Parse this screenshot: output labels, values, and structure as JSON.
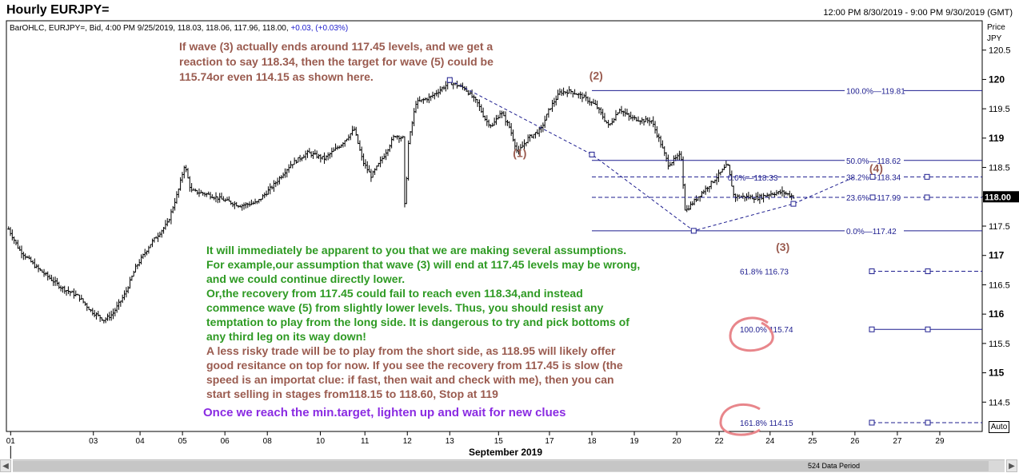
{
  "header": {
    "title": "Hourly EURJPY=",
    "date_range": "12:00 PM 8/30/2019 - 9:00 PM 9/30/2019 (GMT)",
    "bar_info": {
      "text": "BarOHLC, EURJPY=, Bid, 4:00 PM 9/25/2019, 118.03, 118.06, 117.96, 118.00, ",
      "change": "+0.03, (+0.03%)"
    }
  },
  "colors": {
    "brown": "#9a5b4f",
    "green": "#2e9a23",
    "purple": "#8a2be2",
    "navy": "#1d1d8f",
    "bars": "#000000",
    "circle": "#e8868b"
  },
  "axis": {
    "title_line1": "Price",
    "title_line2": "JPY",
    "current_price": "118.00",
    "month_label": "September 2019",
    "auto_label": "Auto",
    "data_period": "524 Data Period"
  },
  "chart_data": {
    "type": "ohlc",
    "title": "Hourly EURJPY=",
    "y_unit": "JPY",
    "ylim": [
      114.0,
      121.0
    ],
    "y_ticks": [
      114.5,
      115,
      115.5,
      116,
      116.5,
      117,
      117.5,
      118,
      118.5,
      119,
      119.5,
      120,
      120.5
    ],
    "x_ticks": [
      "01",
      "03",
      "04",
      "05",
      "06",
      "08",
      "10",
      "11",
      "12",
      "13",
      "15",
      "17",
      "18",
      "19",
      "20",
      "22",
      "24",
      "25",
      "26",
      "27",
      "29"
    ],
    "x_ticks_day": [
      1,
      2.95,
      4.05,
      5.05,
      6.05,
      7.05,
      8.3,
      9.35,
      10.35,
      11.35,
      12.5,
      13.7,
      14.7,
      15.7,
      16.7,
      17.7,
      18.9,
      19.9,
      20.9,
      21.9,
      22.9
    ],
    "x_range_day": [
      0.9,
      23.9
    ],
    "price_path": [
      [
        0.95,
        117.45
      ],
      [
        1.2,
        117.1
      ],
      [
        1.6,
        116.8
      ],
      [
        2.2,
        116.45
      ],
      [
        2.6,
        116.3
      ],
      [
        2.9,
        116.05
      ],
      [
        3.2,
        115.9
      ],
      [
        3.4,
        116.0
      ],
      [
        3.7,
        116.35
      ],
      [
        3.95,
        116.8
      ],
      [
        4.3,
        117.2
      ],
      [
        4.7,
        117.55
      ],
      [
        4.95,
        118.1
      ],
      [
        5.1,
        118.55
      ],
      [
        5.25,
        118.1
      ],
      [
        5.6,
        118.05
      ],
      [
        6.0,
        117.95
      ],
      [
        6.4,
        117.85
      ],
      [
        6.8,
        117.9
      ],
      [
        7.2,
        118.2
      ],
      [
        7.6,
        118.55
      ],
      [
        8.0,
        118.75
      ],
      [
        8.4,
        118.65
      ],
      [
        8.8,
        118.9
      ],
      [
        9.1,
        119.15
      ],
      [
        9.3,
        118.6
      ],
      [
        9.5,
        118.35
      ],
      [
        9.8,
        118.7
      ],
      [
        10.05,
        119.05
      ],
      [
        10.25,
        119.0
      ],
      [
        10.3,
        117.5
      ],
      [
        10.35,
        118.8
      ],
      [
        10.55,
        119.6
      ],
      [
        10.9,
        119.7
      ],
      [
        11.35,
        119.95
      ],
      [
        11.7,
        119.85
      ],
      [
        12.0,
        119.6
      ],
      [
        12.2,
        119.3
      ],
      [
        12.35,
        119.2
      ],
      [
        12.55,
        119.45
      ],
      [
        12.75,
        119.2
      ],
      [
        12.95,
        118.75
      ],
      [
        13.2,
        119.0
      ],
      [
        13.5,
        119.15
      ],
      [
        13.7,
        119.5
      ],
      [
        13.95,
        119.78
      ],
      [
        14.2,
        119.8
      ],
      [
        14.5,
        119.7
      ],
      [
        14.8,
        119.55
      ],
      [
        15.1,
        119.2
      ],
      [
        15.35,
        119.5
      ],
      [
        15.6,
        119.35
      ],
      [
        15.9,
        119.3
      ],
      [
        16.1,
        119.3
      ],
      [
        16.3,
        118.95
      ],
      [
        16.5,
        118.55
      ],
      [
        16.8,
        118.72
      ],
      [
        16.9,
        117.75
      ],
      [
        17.2,
        118.0
      ],
      [
        17.6,
        118.3
      ],
      [
        17.9,
        118.55
      ],
      [
        18.05,
        118.0
      ],
      [
        18.3,
        118.0
      ],
      [
        18.6,
        117.98
      ],
      [
        18.9,
        118.05
      ],
      [
        19.2,
        118.08
      ],
      [
        19.45,
        118.0
      ]
    ],
    "annotations_text": {
      "note_top": [
        "If wave (3) actually ends around 117.45 levels, and we get a",
        "reaction to say 118.34, then the target for wave (5) could be",
        "115.74or even 114.15 as shown here."
      ],
      "note_green": [
        "It will immediately be apparent to you that we are making several assumptions.",
        "For example,our assumption that wave (3) will end at 117.45 levels may be wrong,",
        "and we could continue directly lower.",
        "Or,the recovery from 117.45 could fail to reach even 118.34,and instead",
        "commence wave (5) from slightly lower levels. Thus, you should resist any",
        "temptation to play from the long side. It is dangerous to try and pick bottoms of",
        "any third leg on its way down!"
      ],
      "note_brown": [
        "A less risky trade will be to play from the short side, as 118.95 will likely offer",
        "good resitance on top for now. If you see the recovery from 117.45 is slow (the",
        "speed is an importat clue:  if fast, then wait and check with me), then you can",
        "start selling in stages from118.15 to 118.60, Stop at 119"
      ],
      "note_purple": "Once we reach the min.target,  lighten up and wait for new clues"
    },
    "wave_labels": [
      {
        "text": "(1)",
        "day": 13.0,
        "price": 118.68
      },
      {
        "text": "(2)",
        "day": 14.8,
        "price": 120.0
      },
      {
        "text": "(3)",
        "day": 19.2,
        "price": 117.08
      },
      {
        "text": "(4)",
        "day": 21.4,
        "price": 118.42
      }
    ],
    "fib_levels": [
      {
        "label": "100.0%",
        "value": "119.81",
        "price": 119.81,
        "style": "solid"
      },
      {
        "label": "50.0%",
        "value": "118.62",
        "price": 118.62,
        "style": "solid"
      },
      {
        "label": "38.2%",
        "value": "118.34",
        "price": 118.34,
        "style": "dashed"
      },
      {
        "label": "23.6%",
        "value": "117.99",
        "price": 117.99,
        "style": "dashed"
      },
      {
        "label": "0.0%",
        "value": "117.42",
        "price": 117.42,
        "style": "solid"
      }
    ],
    "fib_extra_label": {
      "label": "0.0%",
      "value": "118.33"
    },
    "projection_levels": [
      {
        "label": "61.8%",
        "value": "116.73",
        "price": 116.73,
        "style": "dashed"
      },
      {
        "label": "100.0%",
        "value": "115.74",
        "price": 115.74,
        "style": "solid"
      },
      {
        "label": "161.8%",
        "value": "114.15",
        "price": 114.15,
        "style": "dashed"
      }
    ]
  }
}
